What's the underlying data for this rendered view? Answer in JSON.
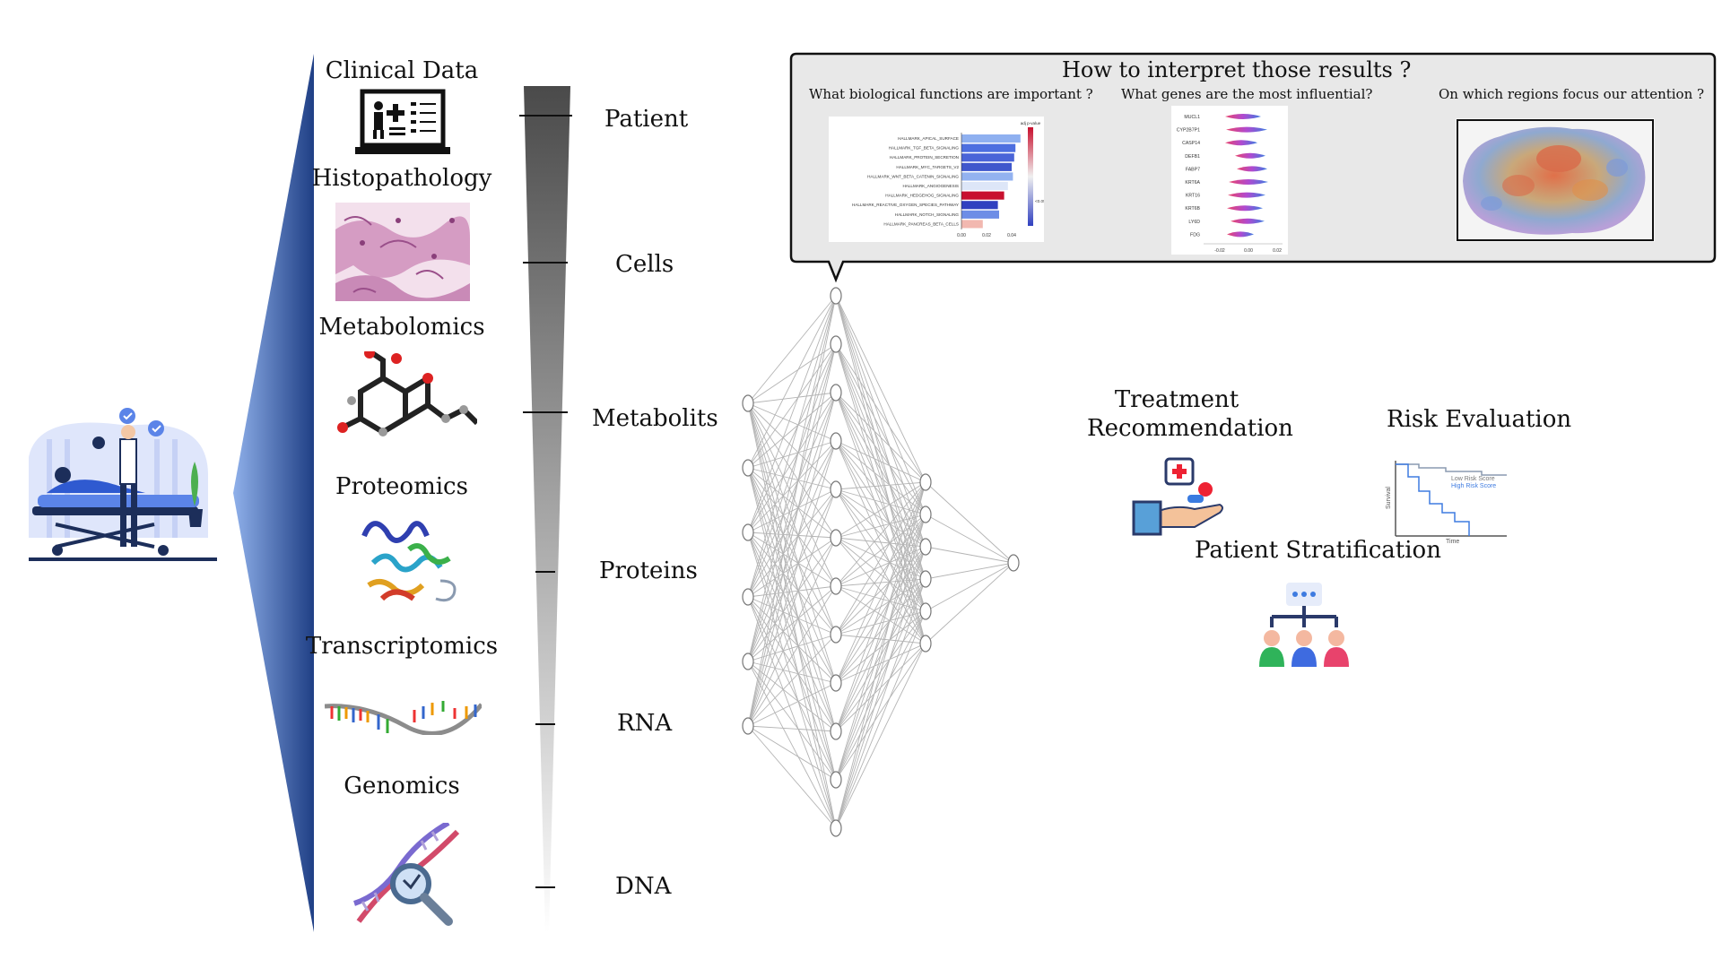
{
  "modalities": [
    {
      "id": "clinical",
      "label": "Clinical Data"
    },
    {
      "id": "histo",
      "label": "Histopathology"
    },
    {
      "id": "metabo",
      "label": "Metabolomics"
    },
    {
      "id": "proteo",
      "label": "Proteomics"
    },
    {
      "id": "transcripto",
      "label": "Transcriptomics"
    },
    {
      "id": "genomics",
      "label": "Genomics"
    }
  ],
  "levels": [
    "Patient",
    "Cells",
    "Metabolits",
    "Proteins",
    "RNA",
    "DNA"
  ],
  "callout": {
    "title": "How to interpret those results ?",
    "q1": "What biological functions are important ?",
    "q2": "What genes are the most influential?",
    "q3": "On which regions focus our attention ?"
  },
  "pathway_chart": {
    "type": "bar",
    "legend_title": "adj p-value",
    "legend_tick": "<0.05",
    "categories": [
      "HALLMARK_APICAL_SURFACE",
      "HALLMARK_TGF_BETA_SIGNALING",
      "HALLMARK_PROTEIN_SECRETION",
      "HALLMARK_MYC_TARGETS_V2",
      "HALLMARK_WNT_BETA_CATENIN_SIGNALING",
      "HALLMARK_ANGIOGENESIS",
      "HALLMARK_HEDGEHOG_SIGNALING",
      "HALLMARK_REACTIVE_OXYGEN_SPECIES_PATHWAY",
      "HALLMARK_NOTCH_SIGNALING",
      "HALLMARK_PANCREAS_BETA_CELLS"
    ],
    "values": [
      0.047,
      0.043,
      0.042,
      0.04,
      0.041,
      0.037,
      0.034,
      0.029,
      0.03,
      0.017
    ],
    "colors": [
      "#8fb0f0",
      "#4d6fe0",
      "#4a64d8",
      "#3f57cc",
      "#93b2f0",
      "#dde6f8",
      "#c8102e",
      "#3040c0",
      "#6d8de6",
      "#f2b8b0"
    ],
    "x_ticks": [
      "0.00",
      "0.02",
      "0.04"
    ],
    "xlim": [
      0,
      0.05
    ]
  },
  "gene_chart": {
    "type": "scatter",
    "genes": [
      "MUCL1",
      "CYP2B7P1",
      "CASP14",
      "DEFB1",
      "FABP7",
      "KRT6A",
      "KRT16",
      "KRT6B",
      "LY6D",
      "FDG"
    ],
    "x_ticks": [
      "-0.02",
      "0.00",
      "0.02"
    ]
  },
  "outcomes": {
    "treatment_line1": "Treatment",
    "treatment_line2": "Recommendation",
    "risk": "Risk Evaluation",
    "stratification": "Patient Stratification",
    "km_low": "Low Risk Score",
    "km_high": "High Risk Score",
    "km_xlabel": "Time",
    "km_ylabel": "Survival"
  },
  "colors": {
    "accent": "#3b5fa8",
    "callout_bg": "#e8e8e8",
    "pink": "#e8436c",
    "blue": "#3e7be0"
  }
}
